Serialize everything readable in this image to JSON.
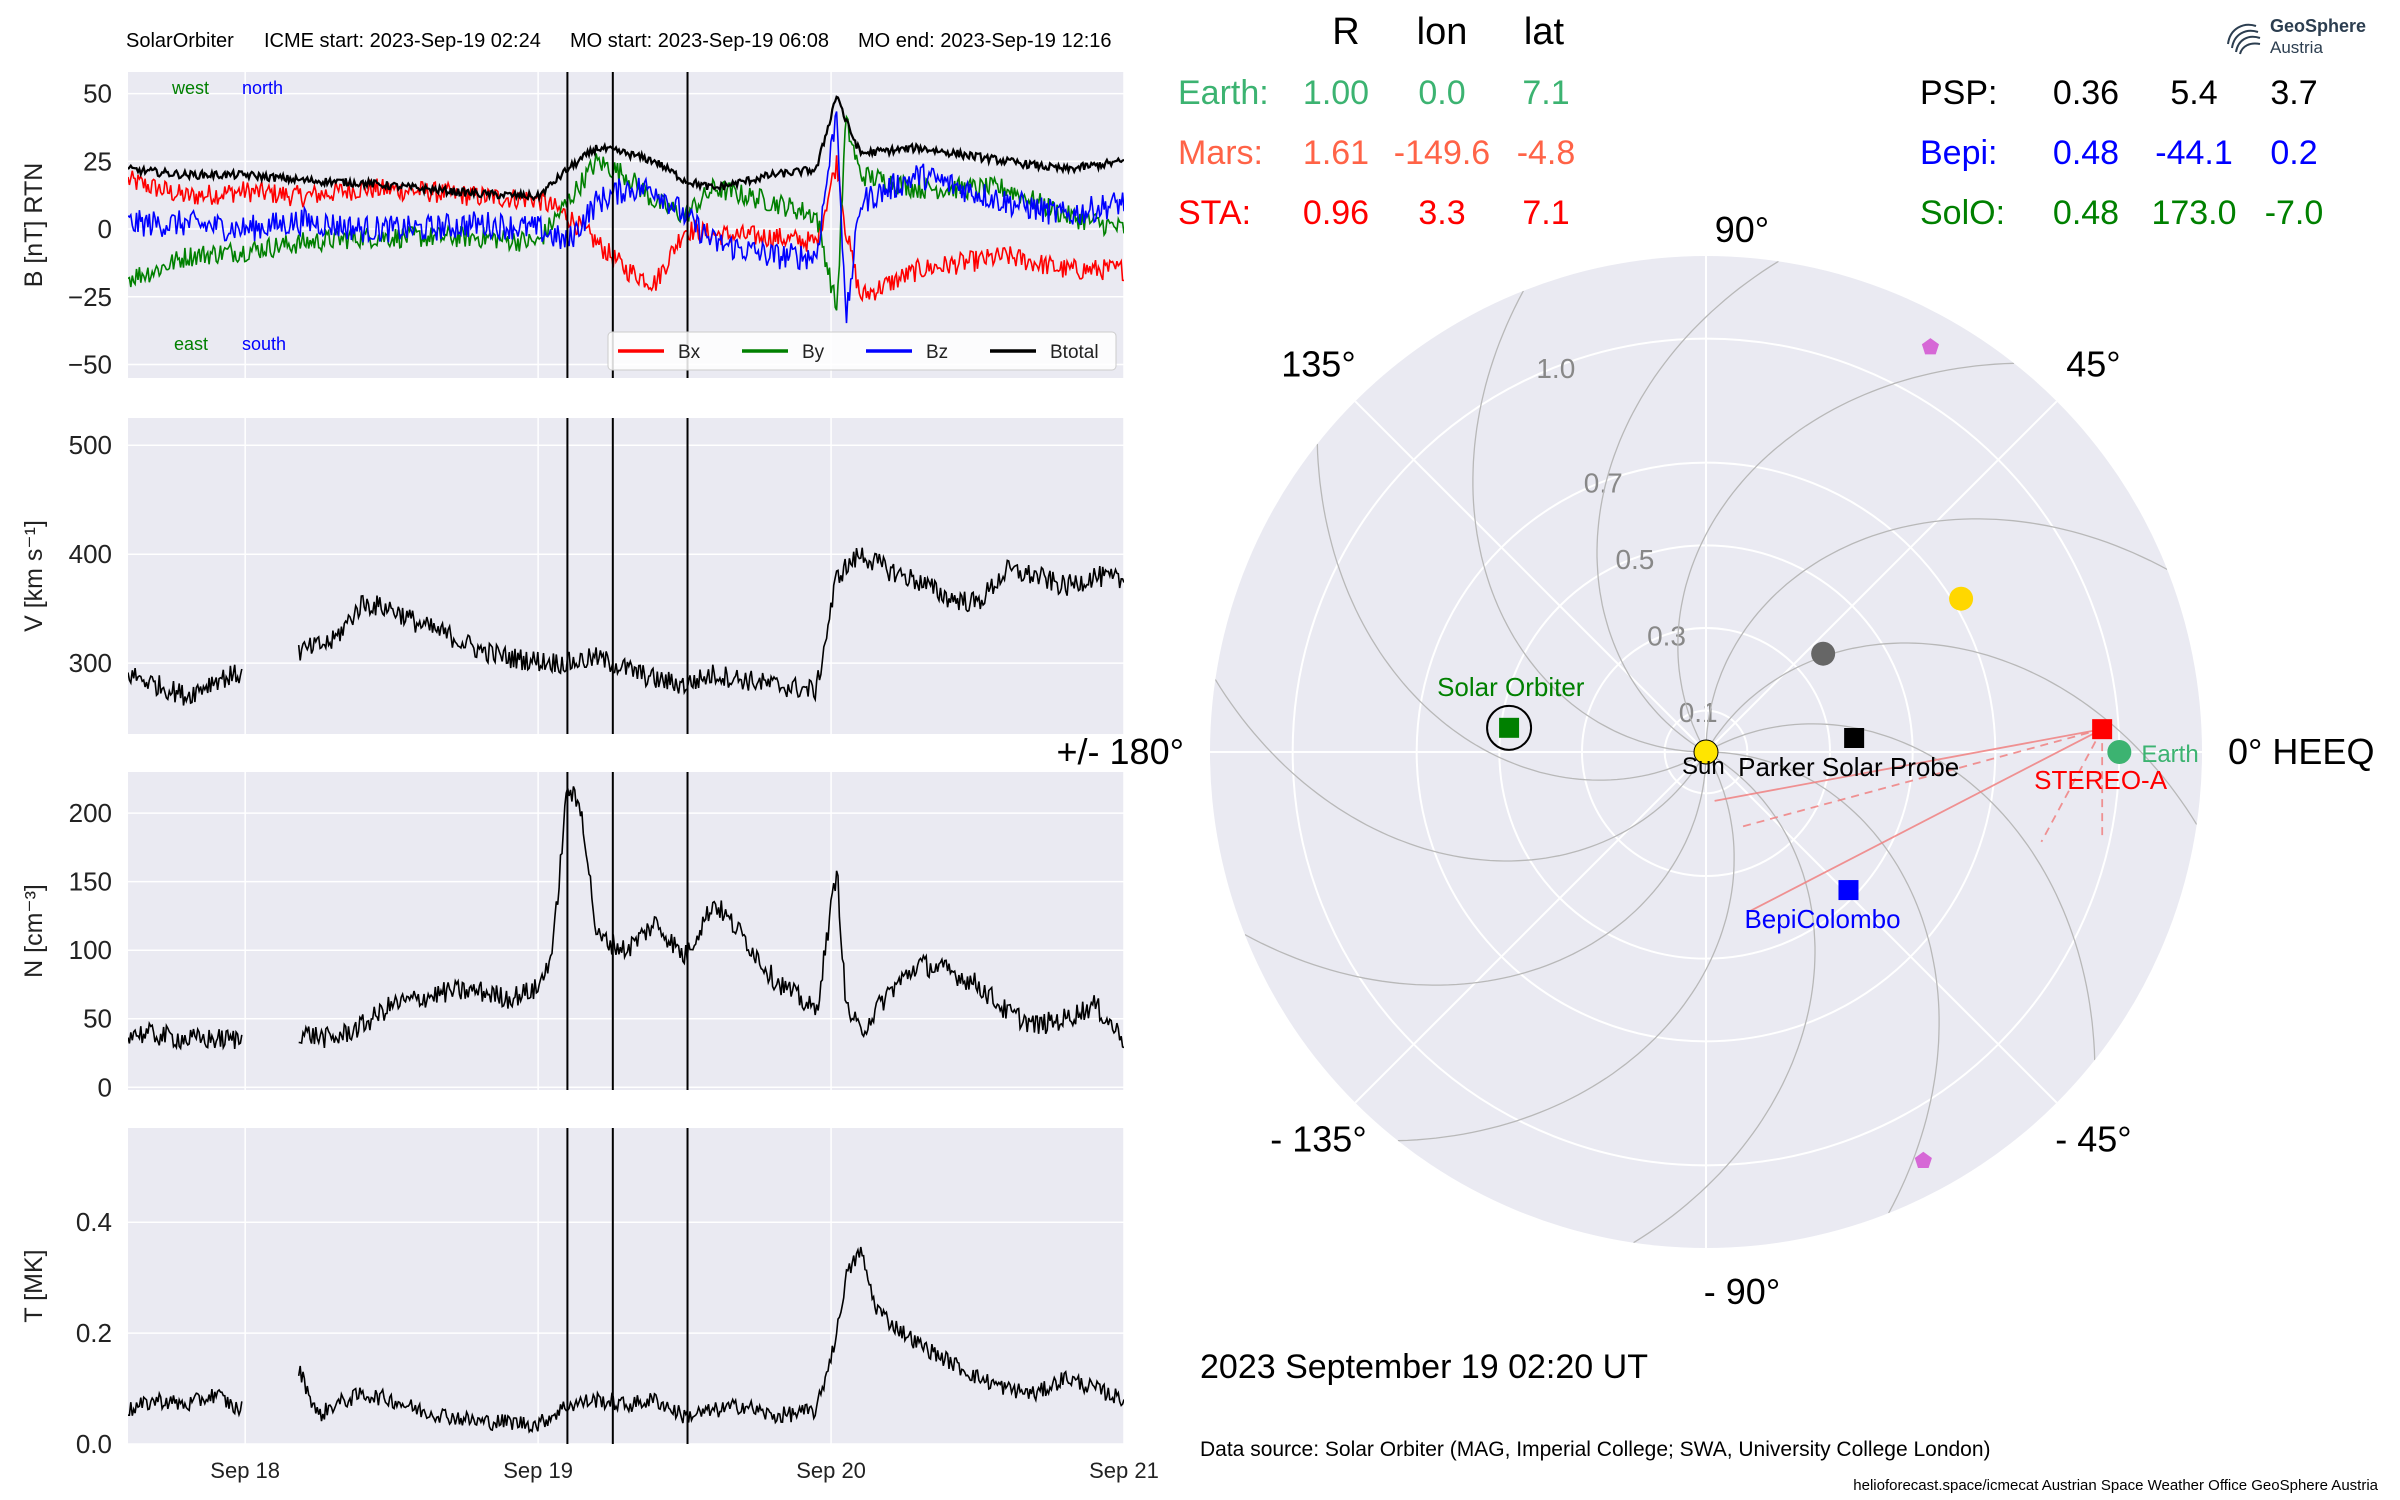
{
  "header": {
    "spacecraft": "SolarOrbiter",
    "icme_start": "ICME start: 2023-Sep-19 02:24",
    "mo_start": "MO start: 2023-Sep-19 06:08",
    "mo_end": "MO end: 2023-Sep-19 12:16"
  },
  "logo": {
    "name": "GeoSphere",
    "sub": "Austria"
  },
  "footer": {
    "datetime": "2023 September 19  02:20 UT",
    "source": "Data source: Solar Orbiter (MAG, Imperial College; SWA, University College London)",
    "credit": "helioforecast.space/icmecat   Austrian Space Weather Office   GeoSphere Austria"
  },
  "colors": {
    "Bx": "#ff0000",
    "By": "#008000",
    "Bz": "#0000ff",
    "Btotal": "#000000",
    "earth": "#3cb371",
    "mars": "#ff6347",
    "sta": "#ff0000",
    "psp": "#000000",
    "bepi": "#0000ff",
    "solo": "#008000",
    "panel_bg": "#eaeaf2",
    "grid": "#ffffff"
  },
  "position_table": {
    "headers": [
      "R",
      "lon",
      "lat"
    ],
    "rows_left": [
      {
        "name": "Earth:",
        "R": "1.00",
        "lon": "0.0",
        "lat": "7.1",
        "color": "#3cb371"
      },
      {
        "name": "Mars:",
        "R": "1.61",
        "lon": "-149.6",
        "lat": "-4.8",
        "color": "#ff6347"
      },
      {
        "name": "STA:",
        "R": "0.96",
        "lon": "3.3",
        "lat": "7.1",
        "color": "#ff0000"
      }
    ],
    "rows_right": [
      {
        "name": "PSP:",
        "R": "0.36",
        "lon": "5.4",
        "lat": "3.7",
        "color": "#000000"
      },
      {
        "name": "Bepi:",
        "R": "0.48",
        "lon": "-44.1",
        "lat": "0.2",
        "color": "#0000ff"
      },
      {
        "name": "SolO:",
        "R": "0.48",
        "lon": "173.0",
        "lat": "-7.0",
        "color": "#008000"
      }
    ]
  },
  "chart_data": [
    {
      "type": "line",
      "panel": "B",
      "ylabel": "B [nT] RTN",
      "ylim": [
        -55,
        58
      ],
      "yticks": [
        -50,
        -25,
        0,
        25,
        50
      ],
      "ytick_labels": [
        "−50",
        "−25",
        "0",
        "25",
        "50"
      ],
      "xlim_days": [
        17.6,
        21.0
      ],
      "annotations": {
        "west": "west",
        "north": "north",
        "east": "east",
        "south": "south"
      },
      "legend": [
        "Bx",
        "By",
        "Bz",
        "Btotal"
      ],
      "legend_loc": "lower-right",
      "series": [
        {
          "name": "Bx",
          "x": [
            17.6,
            17.8,
            18.0,
            18.2,
            18.4,
            18.6,
            18.8,
            19.0,
            19.1,
            19.2,
            19.3,
            19.4,
            19.5,
            19.6,
            19.8,
            19.95,
            20.02,
            20.05,
            20.1,
            20.3,
            20.6,
            20.8,
            21.0
          ],
          "y": [
            18,
            12,
            14,
            12,
            15,
            14,
            12,
            11,
            5,
            -5,
            -15,
            -20,
            0,
            -2,
            -3,
            -5,
            25,
            0,
            -25,
            -15,
            -10,
            -15,
            -15
          ]
        },
        {
          "name": "By",
          "x": [
            17.6,
            17.7,
            17.8,
            18.0,
            18.2,
            18.4,
            18.6,
            18.8,
            19.0,
            19.1,
            19.2,
            19.3,
            19.4,
            19.5,
            19.6,
            19.8,
            19.95,
            20.02,
            20.05,
            20.1,
            20.3,
            20.6,
            20.8,
            21.0
          ],
          "y": [
            -18,
            -15,
            -10,
            -8,
            -5,
            -3,
            -3,
            -3,
            -5,
            10,
            25,
            20,
            10,
            5,
            15,
            10,
            5,
            -30,
            40,
            20,
            15,
            15,
            5,
            0
          ]
        },
        {
          "name": "Bz",
          "x": [
            17.6,
            17.8,
            18.0,
            18.2,
            18.4,
            18.6,
            18.8,
            19.0,
            19.1,
            19.2,
            19.3,
            19.4,
            19.5,
            19.6,
            19.8,
            19.95,
            20.02,
            20.05,
            20.1,
            20.3,
            20.6,
            20.8,
            21.0
          ],
          "y": [
            2,
            2,
            0,
            3,
            0,
            0,
            2,
            0,
            -5,
            10,
            15,
            15,
            5,
            -5,
            -10,
            -10,
            45,
            -35,
            10,
            20,
            10,
            5,
            10
          ]
        },
        {
          "name": "Btotal",
          "x": [
            17.6,
            17.8,
            18.0,
            18.2,
            18.4,
            18.6,
            18.8,
            19.0,
            19.1,
            19.2,
            19.3,
            19.4,
            19.5,
            19.6,
            19.8,
            19.95,
            20.02,
            20.05,
            20.1,
            20.3,
            20.6,
            20.8,
            21.0
          ],
          "y": [
            22,
            20,
            20,
            18,
            17,
            15,
            13,
            12,
            22,
            30,
            28,
            25,
            18,
            15,
            20,
            22,
            50,
            40,
            28,
            30,
            25,
            22,
            25
          ]
        }
      ]
    },
    {
      "type": "line",
      "panel": "V",
      "ylabel": "V [km s⁻¹]",
      "ylim": [
        235,
        525
      ],
      "yticks": [
        300,
        400,
        500
      ],
      "ytick_labels": [
        "300",
        "400",
        "500"
      ],
      "xlim_days": [
        17.6,
        21.0
      ],
      "series": [
        {
          "name": "V",
          "x": [
            17.6,
            17.7,
            17.8,
            17.9,
            17.98,
            18.18,
            18.3,
            18.4,
            18.5,
            18.6,
            18.7,
            18.8,
            18.9,
            19.0,
            19.1,
            19.2,
            19.3,
            19.4,
            19.5,
            19.6,
            19.7,
            19.8,
            19.95,
            20.02,
            20.1,
            20.2,
            20.3,
            20.4,
            20.5,
            20.6,
            20.7,
            20.8,
            20.9,
            21.0
          ],
          "y": [
            290,
            280,
            270,
            285,
            290,
            310,
            320,
            355,
            350,
            335,
            325,
            312,
            305,
            302,
            300,
            305,
            295,
            285,
            280,
            290,
            285,
            280,
            275,
            380,
            400,
            385,
            375,
            360,
            355,
            385,
            380,
            370,
            380,
            375
          ],
          "gaps": [
            [
              17.99,
              18.18
            ]
          ]
        }
      ]
    },
    {
      "type": "line",
      "panel": "N",
      "ylabel": "N [cm⁻³]",
      "ylim": [
        -2,
        230
      ],
      "yticks": [
        0,
        50,
        100,
        150,
        200
      ],
      "ytick_labels": [
        "0",
        "50",
        "100",
        "150",
        "200"
      ],
      "xlim_days": [
        17.6,
        21.0
      ],
      "series": [
        {
          "name": "N",
          "x": [
            17.6,
            17.7,
            17.8,
            17.9,
            17.98,
            18.18,
            18.3,
            18.4,
            18.5,
            18.6,
            18.7,
            18.8,
            18.9,
            19.0,
            19.05,
            19.1,
            19.15,
            19.2,
            19.3,
            19.4,
            19.5,
            19.6,
            19.7,
            19.8,
            19.95,
            20.02,
            20.05,
            20.1,
            20.2,
            20.3,
            20.4,
            20.5,
            20.6,
            20.7,
            20.8,
            20.9,
            21.0
          ],
          "y": [
            40,
            38,
            35,
            35,
            35,
            40,
            35,
            45,
            60,
            65,
            70,
            70,
            65,
            72,
            100,
            220,
            200,
            110,
            100,
            120,
            95,
            135,
            110,
            80,
            55,
            160,
            60,
            40,
            70,
            90,
            85,
            75,
            55,
            45,
            50,
            60,
            35
          ],
          "gaps": [
            [
              17.99,
              18.18
            ]
          ]
        }
      ]
    },
    {
      "type": "line",
      "panel": "T",
      "ylabel": "T [MK]",
      "ylim": [
        0.0,
        0.57
      ],
      "yticks": [
        0.0,
        0.2,
        0.4
      ],
      "ytick_labels": [
        "0.0",
        "0.2",
        "0.4"
      ],
      "xlim_days": [
        17.6,
        21.0
      ],
      "xticks": [
        18,
        19,
        20,
        21
      ],
      "xtick_labels": [
        "Sep 18",
        "Sep 19",
        "Sep 20",
        "Sep 21"
      ],
      "series": [
        {
          "name": "T",
          "x": [
            17.6,
            17.7,
            17.8,
            17.9,
            17.98,
            18.18,
            18.25,
            18.3,
            18.4,
            18.5,
            18.6,
            18.7,
            18.8,
            18.9,
            19.0,
            19.1,
            19.2,
            19.3,
            19.4,
            19.5,
            19.6,
            19.7,
            19.8,
            19.95,
            20.02,
            20.05,
            20.1,
            20.15,
            20.2,
            20.3,
            20.4,
            20.5,
            20.6,
            20.7,
            20.8,
            20.9,
            21.0
          ],
          "y": [
            0.06,
            0.08,
            0.07,
            0.09,
            0.06,
            0.14,
            0.05,
            0.07,
            0.09,
            0.08,
            0.06,
            0.05,
            0.04,
            0.04,
            0.035,
            0.07,
            0.08,
            0.07,
            0.08,
            0.05,
            0.06,
            0.07,
            0.05,
            0.06,
            0.2,
            0.3,
            0.35,
            0.25,
            0.22,
            0.18,
            0.15,
            0.12,
            0.1,
            0.09,
            0.12,
            0.1,
            0.08
          ],
          "gaps": [
            [
              17.99,
              18.18
            ]
          ]
        }
      ]
    }
  ],
  "event_lines": {
    "x_days": [
      19.1,
      19.255,
      19.51
    ],
    "labels": [
      "ICME start",
      "MO start",
      "MO end"
    ]
  },
  "polar_plot": {
    "angle_labels": [
      {
        "text": "90°",
        "angle": 90
      },
      {
        "text": "45°",
        "angle": 45
      },
      {
        "text": "0° HEEQ",
        "angle": 0
      },
      {
        "text": "- 45°",
        "angle": -45
      },
      {
        "text": "- 90°",
        "angle": -90
      },
      {
        "text": "- 135°",
        "angle": -135
      },
      {
        "text": "+/- 180°",
        "angle": 180
      },
      {
        "text": "135°",
        "angle": 135
      }
    ],
    "radial_ticks": [
      0.1,
      0.3,
      0.5,
      0.7,
      1.0
    ],
    "radial_tick_labels": [
      "0.1",
      "0.3",
      "0.5",
      "0.7",
      "1.0"
    ],
    "rmax": 1.2,
    "bodies": [
      {
        "name": "Sun",
        "label": "Sun",
        "r": 0.0,
        "lon": 0,
        "color": "#ffe500",
        "shape": "circle"
      },
      {
        "name": "Earth",
        "label": "Earth",
        "r": 1.0,
        "lon": 0.0,
        "color": "#3cb371",
        "shape": "circle"
      },
      {
        "name": "STEREO-A",
        "label": "STEREO-A",
        "r": 0.96,
        "lon": 3.3,
        "color": "#ff0000",
        "shape": "square"
      },
      {
        "name": "Parker Solar Probe",
        "label": "Parker Solar Probe",
        "r": 0.36,
        "lon": 5.4,
        "color": "#000000",
        "shape": "square"
      },
      {
        "name": "BepiColombo",
        "label": "BepiColombo",
        "r": 0.48,
        "lon": -44.1,
        "color": "#0000ff",
        "shape": "square"
      },
      {
        "name": "Solar Orbiter",
        "label": "Solar Orbiter",
        "r": 0.48,
        "lon": 173.0,
        "color": "#008000",
        "shape": "square"
      },
      {
        "name": "Venus",
        "label": "",
        "r": 0.72,
        "lon": 31,
        "color": "#ffd700",
        "shape": "circle"
      },
      {
        "name": "Mercury",
        "label": "",
        "r": 0.37,
        "lon": 40,
        "color": "#666666",
        "shape": "circle"
      },
      {
        "name": "planet-pentagon-north",
        "label": "",
        "r": 1.12,
        "lon": 61,
        "color": "#d668d6",
        "shape": "pentagon"
      },
      {
        "name": "planet-pentagon-south",
        "label": "",
        "r": 1.12,
        "lon": -62,
        "color": "#d668d6",
        "shape": "pentagon"
      }
    ],
    "fov_lines_from": "STEREO-A",
    "fov_targets": [
      {
        "r": 0.12,
        "lon": -80,
        "style": "solid"
      },
      {
        "r": 0.2,
        "lon": -65,
        "style": "dashed"
      },
      {
        "r": 0.4,
        "lon": -75,
        "style": "solid"
      },
      {
        "r": 0.84,
        "lon": -15,
        "style": "dashed"
      },
      {
        "r": 0.98,
        "lon": -12,
        "style": "dashed"
      }
    ]
  }
}
